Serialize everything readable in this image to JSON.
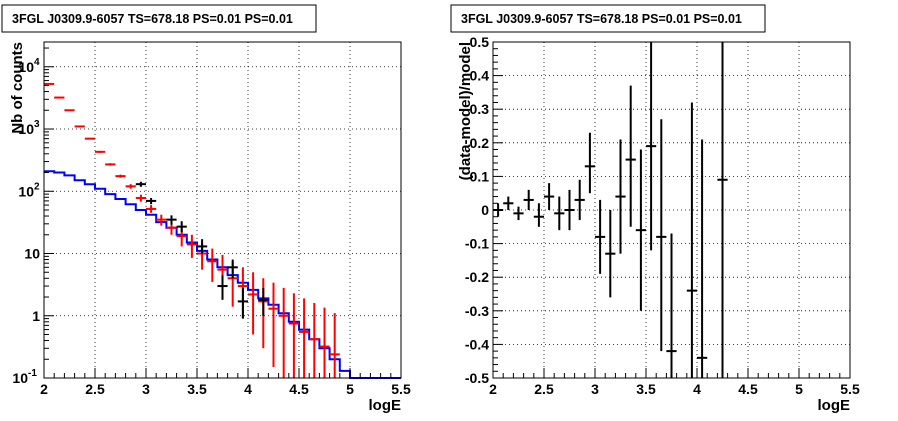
{
  "chart_data": [
    {
      "type": "line",
      "title": "3FGL J0309.9-6057 TS=678.18 PS=0.01 PS=0.01",
      "xlabel": "logE",
      "ylabel": "Nb of counts",
      "xlim": [
        2,
        5.5
      ],
      "ylim": [
        0.1,
        25000
      ],
      "yscale": "log",
      "grid": true,
      "x_ticks": [
        "2",
        "2.5",
        "3",
        "3.5",
        "4",
        "4.5",
        "5",
        "5.5"
      ],
      "y_ticks": [
        {
          "value": 0.1,
          "label": "10",
          "exp": "-1"
        },
        {
          "value": 1,
          "label": "1",
          "exp": ""
        },
        {
          "value": 10,
          "label": "10",
          "exp": ""
        },
        {
          "value": 100,
          "label": "10",
          "exp": "2"
        },
        {
          "value": 1000,
          "label": "10",
          "exp": "3"
        },
        {
          "value": 10000,
          "label": "10",
          "exp": "4"
        }
      ],
      "colors": {
        "model": "#0000ff",
        "predicted": "#ff0000",
        "data": "#000000",
        "grid": "#000000"
      },
      "model_step": {
        "edges": [
          2.0,
          2.1,
          2.2,
          2.3,
          2.4,
          2.5,
          2.6,
          2.7,
          2.8,
          2.9,
          3.0,
          3.1,
          3.2,
          3.3,
          3.4,
          3.5,
          3.6,
          3.7,
          3.8,
          3.9,
          4.0,
          4.1,
          4.2,
          4.3,
          4.4,
          4.5,
          4.6,
          4.7,
          4.8,
          4.9,
          5.0,
          5.5
        ],
        "values": [
          210,
          200,
          180,
          150,
          130,
          110,
          90,
          75,
          62,
          50,
          42,
          32,
          26,
          20,
          15,
          11,
          8,
          6,
          4.5,
          3.4,
          2.6,
          1.9,
          1.5,
          1.1,
          0.8,
          0.6,
          0.42,
          0.3,
          0.2,
          0.13,
          0.1
        ]
      },
      "predicted": {
        "x": [
          2.05,
          2.15,
          2.25,
          2.35,
          2.45,
          2.55,
          2.65,
          2.75,
          2.85,
          2.95,
          3.05,
          3.15,
          3.25,
          3.35,
          3.45,
          3.55,
          3.65,
          3.75,
          3.85,
          3.95,
          4.05,
          4.15,
          4.25,
          4.35,
          4.45,
          4.55,
          4.65,
          4.75,
          4.85
        ],
        "y": [
          5300,
          3200,
          2000,
          1100,
          700,
          430,
          270,
          175,
          120,
          78,
          52,
          35,
          26,
          19,
          14,
          10,
          7.5,
          5.5,
          4,
          3,
          2.2,
          1.7,
          1.3,
          1,
          0.75,
          0.55,
          0.42,
          0.32,
          0.24
        ],
        "ylo": [
          5200,
          3100,
          1950,
          1070,
          680,
          415,
          258,
          165,
          110,
          68,
          45,
          28,
          20,
          13,
          8.5,
          5.5,
          3.5,
          2.3,
          1.4,
          0.9,
          0.5,
          0.3,
          0.15,
          0.1,
          0.1,
          0.1,
          0.1,
          0.1,
          0.1
        ],
        "yhi": [
          5400,
          3300,
          2050,
          1130,
          720,
          445,
          282,
          185,
          130,
          88,
          60,
          42,
          33,
          25,
          20,
          15,
          12,
          9.5,
          7.5,
          6,
          5,
          4,
          3.4,
          2.8,
          2.3,
          1.9,
          1.6,
          1.35,
          1.1
        ]
      },
      "data_points": {
        "x": [
          2.95,
          3.05,
          3.25,
          3.35,
          3.55,
          3.75,
          3.85,
          3.95,
          4.15
        ],
        "y": [
          130,
          70,
          35,
          27,
          13,
          3,
          6,
          1.7,
          1.8
        ],
        "ylo": [
          118,
          62,
          29,
          22,
          10,
          1.8,
          4,
          0.9,
          1.0
        ],
        "yhi": [
          142,
          78,
          41,
          33,
          17,
          4.5,
          8,
          2.8,
          2.8
        ]
      }
    },
    {
      "type": "scatter",
      "title": "3FGL J0309.9-6057 TS=678.18 PS=0.01 PS=0.01",
      "xlabel": "logE",
      "ylabel": "(data-model)/model",
      "xlim": [
        2,
        5.5
      ],
      "ylim": [
        -0.5,
        0.5
      ],
      "grid": true,
      "x_ticks": [
        "2",
        "2.5",
        "3",
        "3.5",
        "4",
        "4.5",
        "5",
        "5.5"
      ],
      "y_ticks": [
        "-0.5",
        "-0.4",
        "-0.3",
        "-0.2",
        "-0.1",
        "0",
        "0.1",
        "0.2",
        "0.3",
        "0.4",
        "0.5"
      ],
      "colors": {
        "points": "#000000",
        "grid": "#000000"
      },
      "points": {
        "x": [
          2.05,
          2.15,
          2.25,
          2.35,
          2.45,
          2.55,
          2.65,
          2.75,
          2.85,
          2.95,
          3.05,
          3.15,
          3.25,
          3.35,
          3.45,
          3.55,
          3.65,
          3.75,
          3.95,
          4.05,
          4.25
        ],
        "y": [
          0.0,
          0.02,
          -0.01,
          0.03,
          -0.02,
          0.04,
          -0.01,
          0.0,
          0.03,
          0.13,
          -0.08,
          -0.13,
          0.04,
          0.15,
          -0.06,
          0.19,
          -0.08,
          -0.42,
          -0.24,
          -0.44,
          0.09
        ],
        "ylo": [
          -0.02,
          0.0,
          -0.03,
          0.0,
          -0.05,
          0.0,
          -0.06,
          -0.06,
          -0.03,
          0.05,
          -0.19,
          -0.26,
          -0.13,
          -0.05,
          -0.3,
          -0.12,
          -0.42,
          -0.5,
          -0.5,
          -0.5,
          -0.5
        ],
        "yhi": [
          0.02,
          0.04,
          0.01,
          0.06,
          0.02,
          0.08,
          0.04,
          0.06,
          0.09,
          0.23,
          0.03,
          0.0,
          0.21,
          0.37,
          0.18,
          0.5,
          0.27,
          -0.07,
          0.32,
          0.21,
          0.5
        ]
      }
    }
  ]
}
